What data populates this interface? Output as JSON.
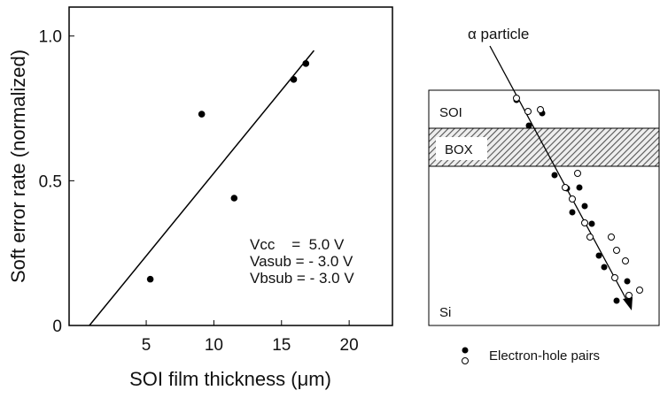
{
  "chart_data": {
    "type": "scatter",
    "xlabel": "SOI film thickness (μm)",
    "ylabel": "Soft error rate (normalized)",
    "x": [
      5.3,
      9.1,
      11.5,
      15.9,
      16.8
    ],
    "values": [
      0.16,
      0.73,
      0.44,
      0.85,
      0.905
    ],
    "color": "#000000",
    "fit_line": {
      "x": [
        0.8,
        17.4
      ],
      "values": [
        0,
        0.95
      ]
    },
    "xlim": [
      -0.7,
      23.2
    ],
    "ylim": [
      0,
      1.1
    ],
    "xticks": [
      5,
      10,
      15,
      20
    ],
    "yticks": [
      0,
      0.5,
      {
        "value": 1,
        "label": "1.0"
      }
    ],
    "annotations": [
      "Vcc    =  5.0 V",
      "Vasub = - 3.0 V",
      "Vbsub = - 3.0 V"
    ]
  },
  "diagram": {
    "particle": "α  particle",
    "layers": [
      "SOI",
      "BOX",
      "Si"
    ],
    "legend": "Electron-hole pairs"
  }
}
